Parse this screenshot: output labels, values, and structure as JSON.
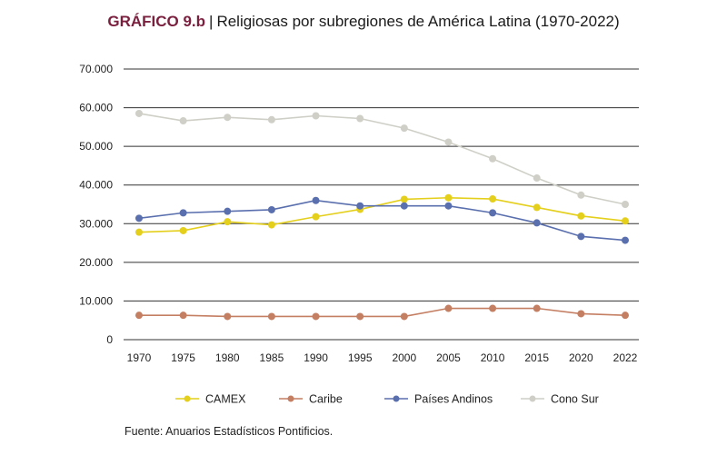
{
  "header": {
    "label": "GRÁFICO 9.b",
    "separator": "|",
    "title": "Religiosas por subregiones de América Latina (1970-2022)"
  },
  "source": "Fuente: Anuarios Estadísticos Pontificios.",
  "chart_data": {
    "type": "line",
    "title": "Religiosas por subregiones de América Latina (1970-2022)",
    "x": [
      "1970",
      "1975",
      "1980",
      "1985",
      "1990",
      "1995",
      "2000",
      "2005",
      "2010",
      "2015",
      "2020",
      "2022"
    ],
    "ylim": [
      0,
      70000
    ],
    "yticks": [
      0,
      10000,
      20000,
      30000,
      40000,
      50000,
      60000,
      70000
    ],
    "ytick_labels": [
      "0",
      "10.000",
      "20.000",
      "30.000",
      "40.000",
      "50.000",
      "60.000",
      "70.000"
    ],
    "grid": true,
    "legend_position": "bottom",
    "series": [
      {
        "name": "CAMEX",
        "color": "#e4cf1c",
        "values": [
          27800,
          28200,
          30500,
          29700,
          31800,
          33700,
          36300,
          36700,
          36400,
          34200,
          32000,
          30700
        ]
      },
      {
        "name": "Caribe",
        "color": "#c47e62",
        "values": [
          6300,
          6300,
          6000,
          6000,
          6000,
          6000,
          6000,
          8100,
          8100,
          8100,
          6700,
          6300
        ]
      },
      {
        "name": "Países Andinos",
        "color": "#5a6fae",
        "values": [
          31400,
          32800,
          33200,
          33600,
          36000,
          34600,
          34600,
          34600,
          32800,
          30200,
          26700,
          25700
        ]
      },
      {
        "name": "Cono Sur",
        "color": "#cfcfc7",
        "values": [
          58500,
          56600,
          57500,
          56900,
          57900,
          57200,
          54700,
          51100,
          46800,
          41800,
          37400,
          35000
        ]
      }
    ]
  }
}
